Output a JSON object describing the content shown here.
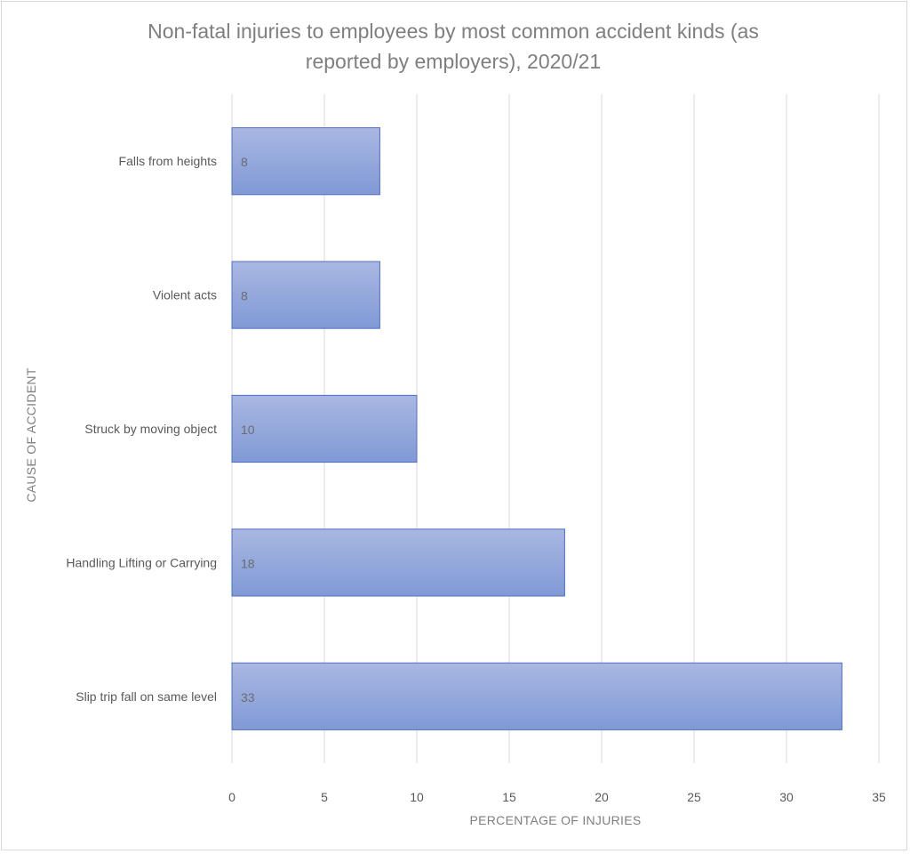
{
  "chart_data": {
    "type": "bar",
    "orientation": "horizontal",
    "title": "Non-fatal injuries to employees by most common accident kinds (as reported by employers), 2020/21",
    "title_lines": [
      "Non-fatal injuries to employees by most common accident kinds (as",
      "reported by employers), 2020/21"
    ],
    "xlabel": "PERCENTAGE OF  INJURIES",
    "ylabel": "CAUSE OF ACCIDENT",
    "categories": [
      "Falls from heights",
      "Violent acts",
      "Struck by moving object",
      "Handling Lifting or Carrying",
      "Slip trip fall on same level"
    ],
    "values": [
      8,
      8,
      10,
      18,
      33
    ],
    "data_labels": [
      "8",
      "8",
      "10",
      "18",
      "33"
    ],
    "xlim": [
      0,
      35
    ],
    "xticks": [
      "0",
      "5",
      "10",
      "15",
      "20",
      "25",
      "30",
      "35"
    ],
    "grid": "vertical",
    "legend": "none",
    "colors": {
      "bar_top": "#a9b8e2",
      "bar_bottom": "#8099d6",
      "bar_border": "#4f6fc6",
      "gridline": "#d9d9d9",
      "text": "#595959",
      "title": "#7f7f7f"
    }
  }
}
